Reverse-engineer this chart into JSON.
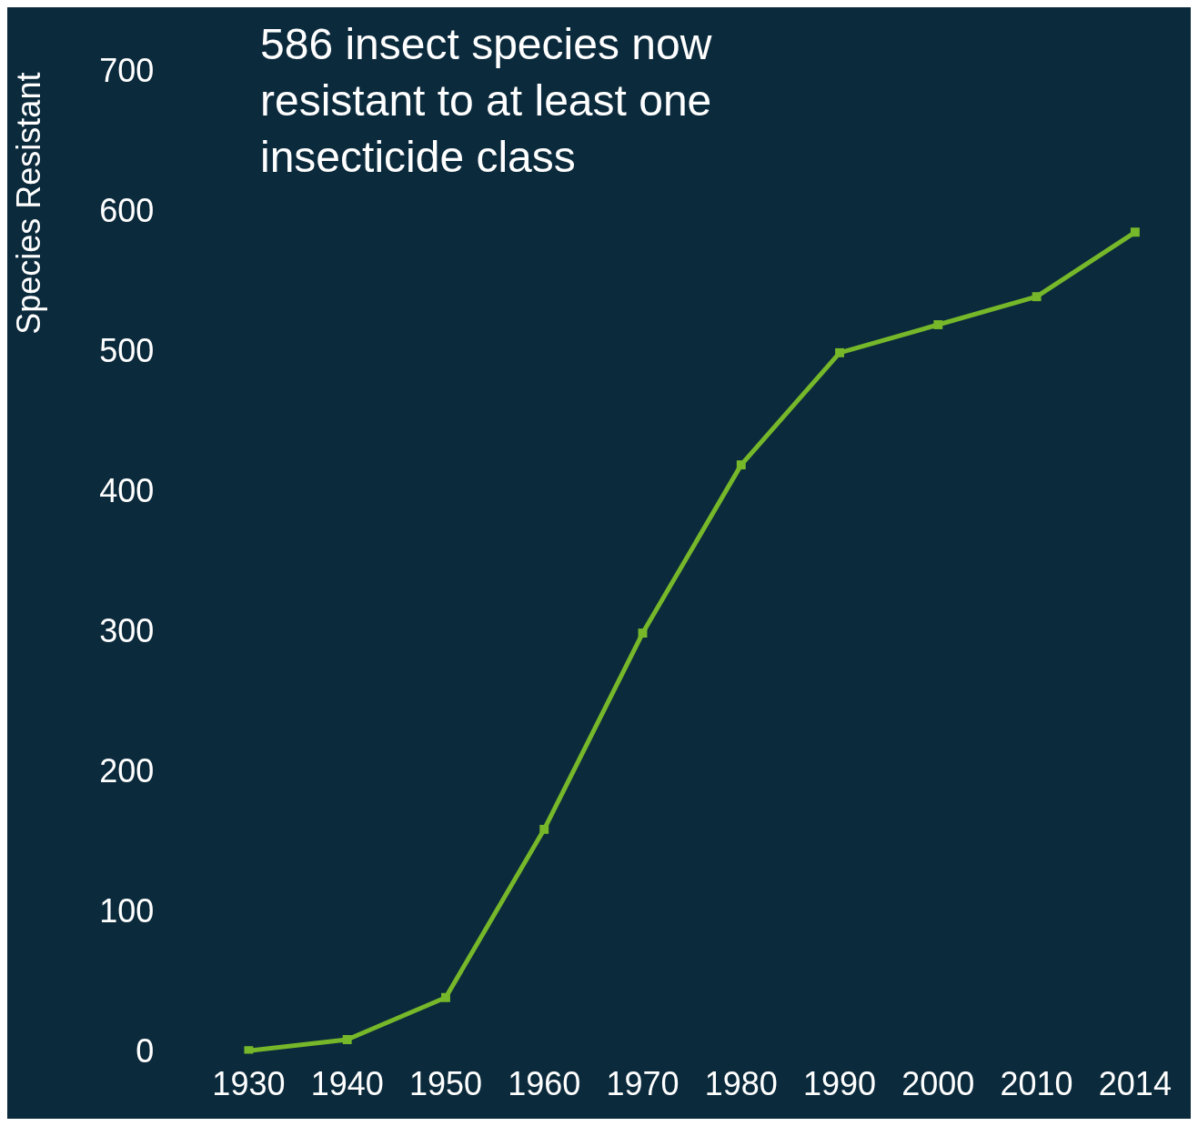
{
  "chart_data": {
    "type": "line",
    "ylabel": "Species Resistant",
    "annotations": [
      "586 insect species now resistant to at least one insecticide class"
    ],
    "categories": [
      "1930",
      "1940",
      "1950",
      "1960",
      "1970",
      "1980",
      "1990",
      "2000",
      "2010",
      "2014"
    ],
    "series": [
      {
        "color": "#76b82a",
        "values": [
          2,
          10,
          40,
          160,
          300,
          420,
          500,
          520,
          540,
          586
        ]
      }
    ],
    "ylim": [
      0,
      700
    ],
    "yticks": [
      0,
      100,
      200,
      300,
      400,
      500,
      600,
      700
    ],
    "grid": false,
    "legend": false,
    "marker": "square",
    "line_style": "solid"
  }
}
